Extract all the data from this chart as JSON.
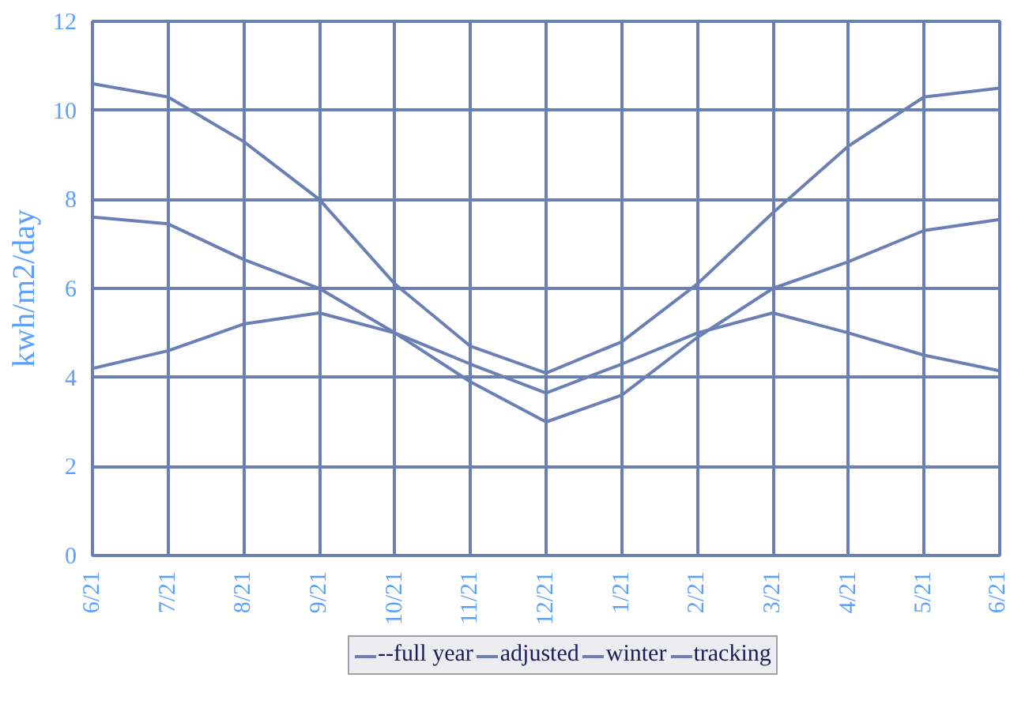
{
  "chart_data": {
    "type": "line",
    "ylabel": "kwh/m2/day",
    "categories": [
      "6/21",
      "7/21",
      "8/21",
      "9/21",
      "10/21",
      "11/21",
      "12/21",
      "1/21",
      "2/21",
      "3/21",
      "4/21",
      "5/21",
      "6/21"
    ],
    "series": [
      {
        "name": "--full year",
        "color": "#6a80b4",
        "values": [
          null,
          null,
          null,
          null,
          null,
          null,
          null,
          null,
          null,
          null,
          null,
          null,
          null
        ]
      },
      {
        "name": "adjusted",
        "color": "#6a80b4",
        "values": [
          7.6,
          7.45,
          6.65,
          6.0,
          5.0,
          3.9,
          3.0,
          3.6,
          4.9,
          6.0,
          6.6,
          7.3,
          7.55
        ]
      },
      {
        "name": "winter",
        "color": "#6a80b4",
        "values": [
          4.2,
          4.6,
          5.2,
          5.45,
          5.0,
          4.3,
          3.65,
          4.3,
          5.0,
          5.45,
          5.0,
          4.5,
          4.15
        ]
      },
      {
        "name": "tracking",
        "color": "#6a80b4",
        "values": [
          10.6,
          10.3,
          9.3,
          8.0,
          6.1,
          4.7,
          4.1,
          4.8,
          6.1,
          7.7,
          9.2,
          10.3,
          10.5
        ]
      }
    ],
    "ylim": [
      0,
      12
    ],
    "yticks": [
      0,
      2,
      4,
      6,
      8,
      10,
      12
    ],
    "grid": true,
    "legend": "bottom",
    "marker": "none",
    "line_style": "solid"
  }
}
